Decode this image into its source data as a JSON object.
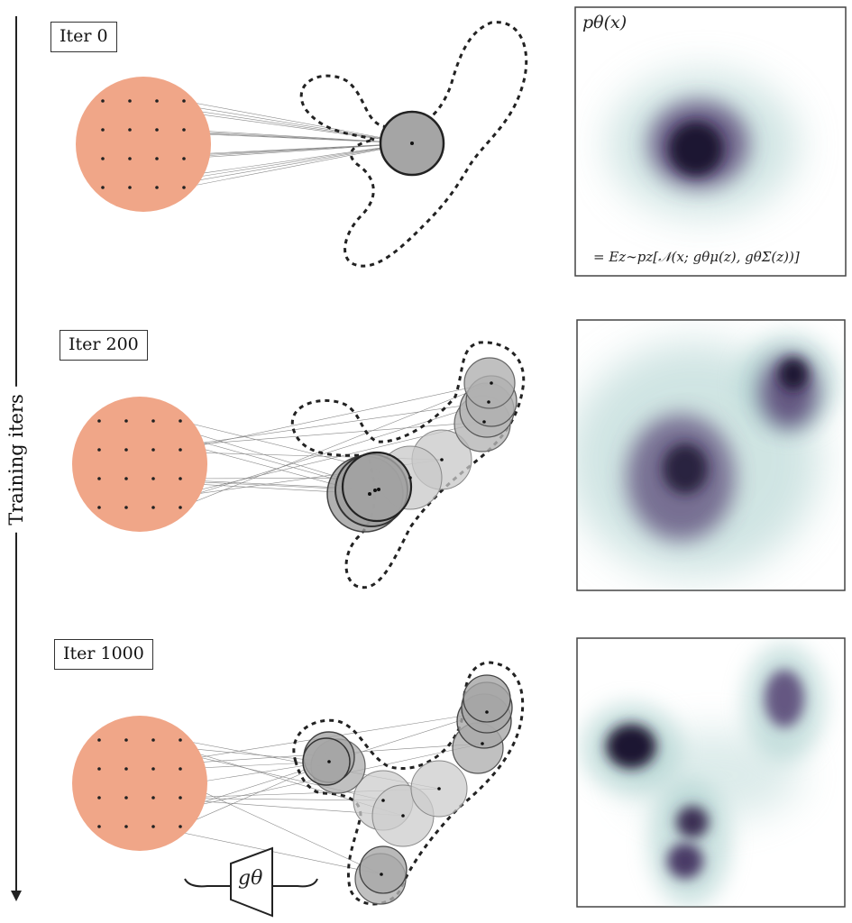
{
  "rows": [
    {
      "iter_label": "Iter 0"
    },
    {
      "iter_label": "Iter 200"
    },
    {
      "iter_label": "Iter 1000"
    }
  ],
  "axis_label": "Training iters",
  "density_label": "pθ(x)",
  "density_equation": "= Ez∼pz[𝒩(x; gθμ(z), gθΣ(z))]",
  "decoder_label": "gθ",
  "colors": {
    "latent": "#f0a688",
    "gaussian_fill": "#9c9c9c",
    "gaussian_stroke": "#333333",
    "target_outline": "#222222",
    "density_dark": "#1e1630",
    "density_mid": "#5a4a78",
    "density_light": "#a9cfcc"
  }
}
